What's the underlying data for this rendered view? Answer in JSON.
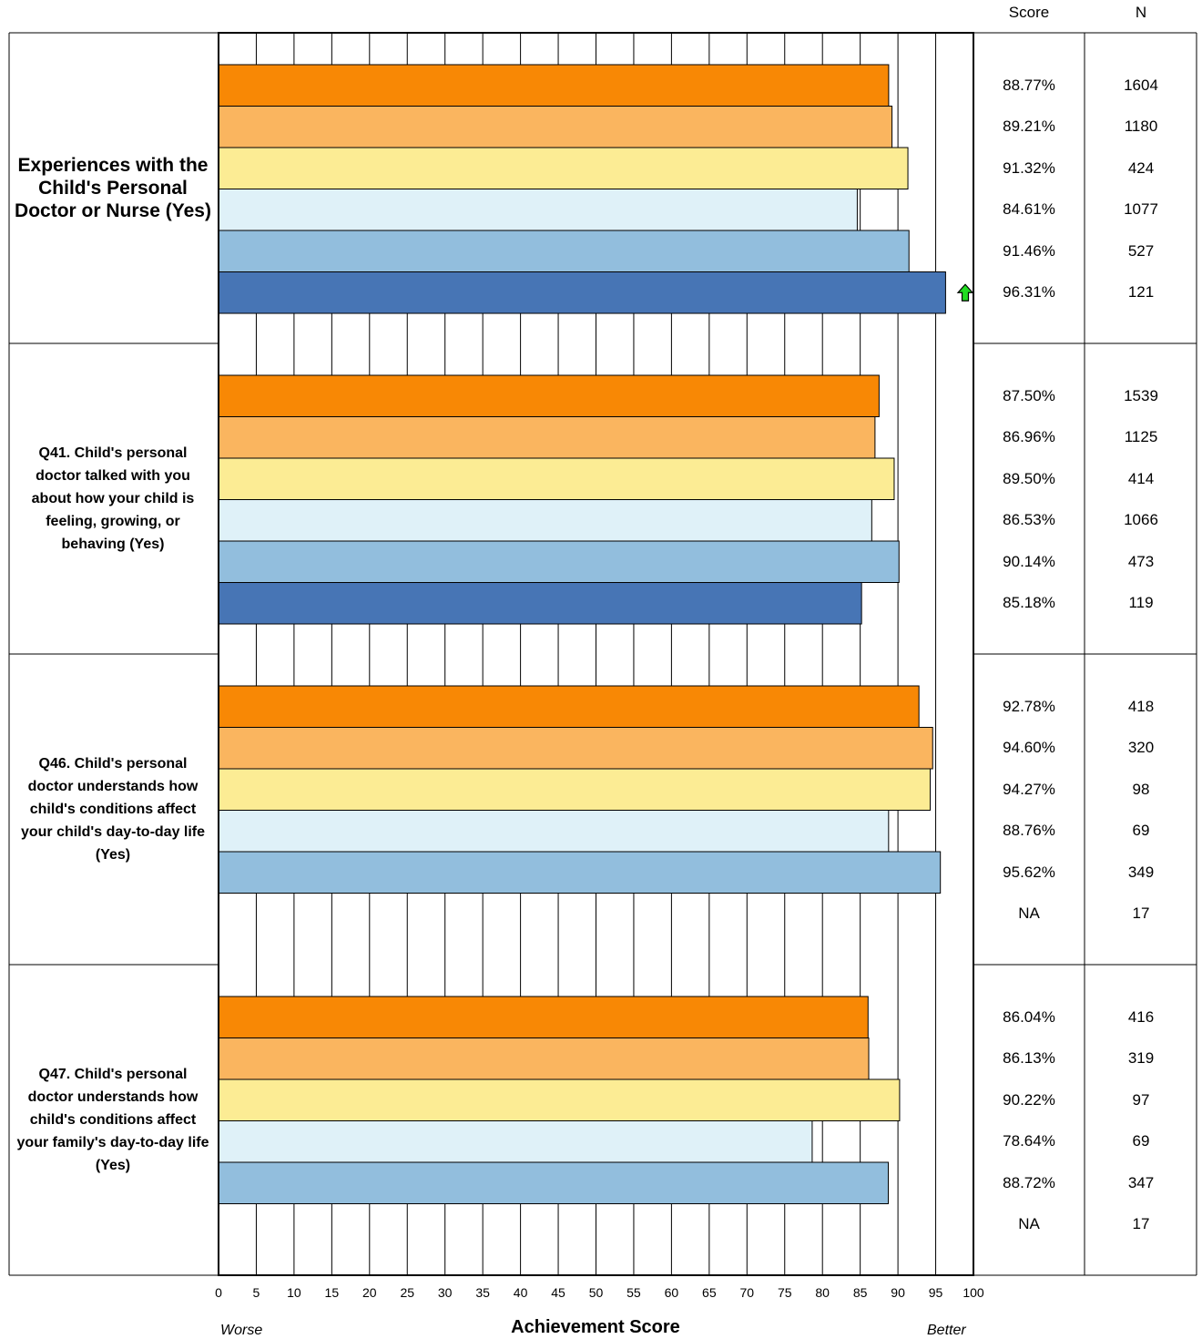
{
  "chart_data": {
    "type": "bar",
    "orientation": "horizontal",
    "xlabel": "Achievement Score",
    "xlim": [
      0,
      100
    ],
    "x_ticks": [
      0,
      5,
      10,
      15,
      20,
      25,
      30,
      35,
      40,
      45,
      50,
      55,
      60,
      65,
      70,
      75,
      80,
      85,
      90,
      95,
      100
    ],
    "axis_left_note": "Worse",
    "axis_right_note": "Better",
    "table_headers": [
      "Score",
      "N"
    ],
    "series_colors": [
      "#f88805",
      "#fab55f",
      "#fcec94",
      "#dff1f8",
      "#92bedd",
      "#4775b5"
    ],
    "groups": [
      {
        "label": "Experiences with the Child's Personal Doctor or Nurse (Yes)",
        "values": [
          88.77,
          89.21,
          91.32,
          84.61,
          91.46,
          96.31
        ],
        "score_labels": [
          "88.77%",
          "89.21%",
          "91.32%",
          "84.61%",
          "91.46%",
          "96.31%"
        ],
        "n_labels": [
          "1604",
          "1180",
          "424",
          "1077",
          "527",
          "121"
        ],
        "indicators": [
          null,
          null,
          null,
          null,
          null,
          "up-arrow-icon"
        ]
      },
      {
        "label": "Q41. Child's personal doctor talked with you about how your child is feeling, growing, or behaving (Yes)",
        "values": [
          87.5,
          86.96,
          89.5,
          86.53,
          90.14,
          85.18
        ],
        "score_labels": [
          "87.50%",
          "86.96%",
          "89.50%",
          "86.53%",
          "90.14%",
          "85.18%"
        ],
        "n_labels": [
          "1539",
          "1125",
          "414",
          "1066",
          "473",
          "119"
        ],
        "indicators": [
          null,
          null,
          null,
          null,
          null,
          null
        ]
      },
      {
        "label": "Q46. Child's personal doctor understands how child's conditions affect your child's day-to-day life (Yes)",
        "values": [
          92.78,
          94.6,
          94.27,
          88.76,
          95.62,
          null
        ],
        "score_labels": [
          "92.78%",
          "94.60%",
          "94.27%",
          "88.76%",
          "95.62%",
          "NA"
        ],
        "n_labels": [
          "418",
          "320",
          "98",
          "69",
          "349",
          "17"
        ],
        "indicators": [
          null,
          null,
          null,
          null,
          null,
          null
        ]
      },
      {
        "label": "Q47. Child's personal doctor understands how child's conditions affect your family's day-to-day life (Yes)",
        "values": [
          86.04,
          86.13,
          90.22,
          78.64,
          88.72,
          null
        ],
        "score_labels": [
          "86.04%",
          "86.13%",
          "90.22%",
          "78.64%",
          "88.72%",
          "NA"
        ],
        "n_labels": [
          "416",
          "319",
          "97",
          "69",
          "347",
          "17"
        ],
        "indicators": [
          null,
          null,
          null,
          null,
          null,
          null
        ]
      }
    ]
  }
}
